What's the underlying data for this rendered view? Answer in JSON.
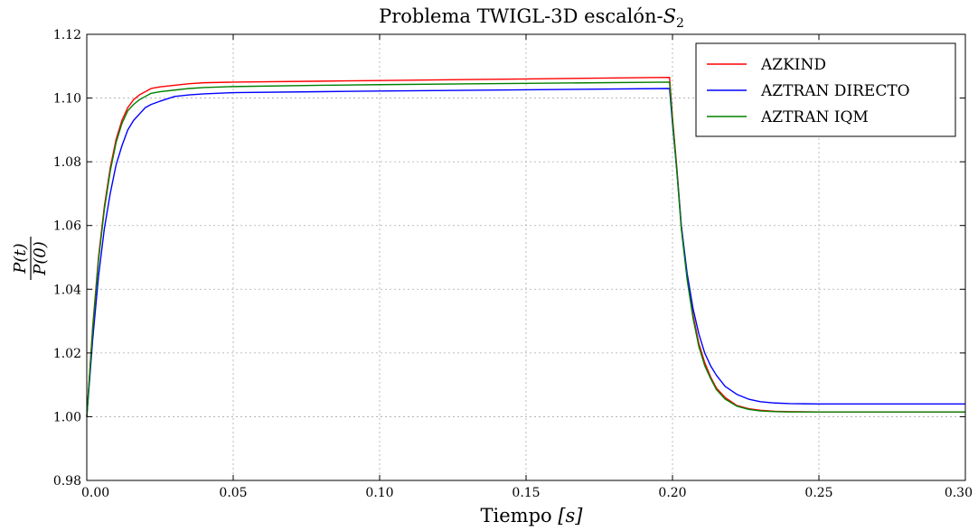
{
  "chart_data": {
    "type": "line",
    "title": "Problema TWIGL-3D escalón-S2",
    "title_parts": {
      "main": "Problema TWIGL-3D escalón-",
      "var": "S",
      "sub": "2"
    },
    "xlabel": "Tiempo [s]",
    "xlabel_parts": {
      "main": "Tiempo ",
      "var": "[s]"
    },
    "ylabel": "P(t)/P(0)",
    "ylabel_parts": {
      "num": "P(t)",
      "den": "P(0)"
    },
    "xlim": [
      0.0,
      0.3
    ],
    "ylim": [
      0.98,
      1.12
    ],
    "xticks": [
      "0.00",
      "0.05",
      "0.10",
      "0.15",
      "0.20",
      "0.25",
      "0.30"
    ],
    "xtick_values": [
      0.0,
      0.05,
      0.1,
      0.15,
      0.2,
      0.25,
      0.3
    ],
    "yticks": [
      "0.98",
      "1.00",
      "1.02",
      "1.04",
      "1.06",
      "1.08",
      "1.10",
      "1.12"
    ],
    "ytick_values": [
      0.98,
      1.0,
      1.02,
      1.04,
      1.06,
      1.08,
      1.1,
      1.12
    ],
    "grid": true,
    "legend_position": "top-right",
    "series": [
      {
        "name": "AZKIND",
        "color": "#ff0000",
        "x": [
          0.0,
          0.002,
          0.004,
          0.006,
          0.008,
          0.01,
          0.012,
          0.014,
          0.016,
          0.018,
          0.02,
          0.022,
          0.025,
          0.03,
          0.035,
          0.04,
          0.05,
          0.08,
          0.1,
          0.15,
          0.199,
          0.2,
          0.2015,
          0.203,
          0.205,
          0.207,
          0.209,
          0.211,
          0.213,
          0.215,
          0.218,
          0.222,
          0.226,
          0.23,
          0.235,
          0.24,
          0.25,
          0.27,
          0.3
        ],
        "y": [
          1.0,
          1.028,
          1.05,
          1.066,
          1.078,
          1.087,
          1.093,
          1.097,
          1.0995,
          1.101,
          1.102,
          1.103,
          1.1035,
          1.104,
          1.1045,
          1.1048,
          1.105,
          1.1053,
          1.1055,
          1.106,
          1.1065,
          1.094,
          1.078,
          1.06,
          1.044,
          1.032,
          1.023,
          1.017,
          1.0125,
          1.009,
          1.006,
          1.0035,
          1.0025,
          1.002,
          1.0017,
          1.0016,
          1.0015,
          1.0015,
          1.0015
        ]
      },
      {
        "name": "AZTRAN DIRECTO",
        "color": "#0000ff",
        "x": [
          0.0,
          0.002,
          0.004,
          0.006,
          0.008,
          0.01,
          0.012,
          0.014,
          0.016,
          0.018,
          0.02,
          0.022,
          0.025,
          0.03,
          0.035,
          0.04,
          0.05,
          0.08,
          0.1,
          0.15,
          0.199,
          0.2,
          0.2015,
          0.203,
          0.205,
          0.207,
          0.209,
          0.211,
          0.213,
          0.215,
          0.218,
          0.222,
          0.226,
          0.23,
          0.235,
          0.24,
          0.25,
          0.27,
          0.3
        ],
        "y": [
          1.0,
          1.024,
          1.044,
          1.059,
          1.07,
          1.079,
          1.085,
          1.09,
          1.093,
          1.095,
          1.097,
          1.098,
          1.099,
          1.1005,
          1.101,
          1.1013,
          1.1017,
          1.102,
          1.1022,
          1.1026,
          1.103,
          1.092,
          1.077,
          1.06,
          1.045,
          1.034,
          1.026,
          1.02,
          1.016,
          1.013,
          1.0095,
          1.007,
          1.0055,
          1.0047,
          1.0043,
          1.0041,
          1.004,
          1.004,
          1.004
        ]
      },
      {
        "name": "AZTRAN IQM",
        "color": "#008000",
        "x": [
          0.0,
          0.002,
          0.004,
          0.006,
          0.008,
          0.01,
          0.012,
          0.014,
          0.016,
          0.018,
          0.02,
          0.022,
          0.025,
          0.03,
          0.035,
          0.04,
          0.05,
          0.08,
          0.1,
          0.15,
          0.199,
          0.2,
          0.2015,
          0.203,
          0.205,
          0.207,
          0.209,
          0.211,
          0.213,
          0.215,
          0.218,
          0.222,
          0.226,
          0.23,
          0.235,
          0.24,
          0.25,
          0.27,
          0.3
        ],
        "y": [
          1.0,
          1.027,
          1.049,
          1.065,
          1.077,
          1.086,
          1.092,
          1.096,
          1.098,
          1.0995,
          1.1005,
          1.1015,
          1.102,
          1.1025,
          1.103,
          1.1033,
          1.1036,
          1.104,
          1.1042,
          1.1046,
          1.105,
          1.093,
          1.077,
          1.059,
          1.043,
          1.031,
          1.022,
          1.016,
          1.012,
          1.0085,
          1.0055,
          1.0033,
          1.0023,
          1.0018,
          1.0016,
          1.0015,
          1.0015,
          1.0015,
          1.0015
        ]
      }
    ]
  }
}
